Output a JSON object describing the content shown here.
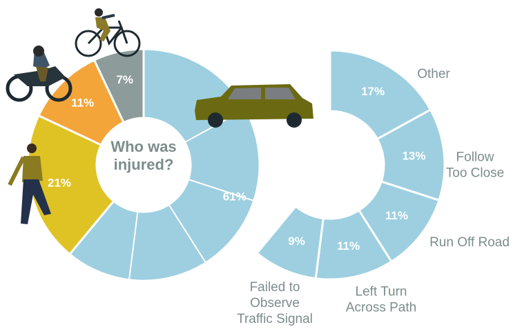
{
  "chart_data": [
    {
      "type": "donut",
      "center_label": "Who was\ninjured?",
      "values": [
        61,
        21,
        11,
        7
      ],
      "value_labels": [
        "61%",
        "21%",
        "11%",
        "7%"
      ],
      "colors": [
        "#9dcfe0",
        "#dfc324",
        "#f4a53a",
        "#8d9c9a"
      ]
    },
    {
      "type": "donut",
      "categories": [
        "Other",
        "Follow\nToo Close",
        "Run Off Road",
        "Left Turn\nAcross Path",
        "Failed to\nObserve\nTraffic Signal"
      ],
      "values": [
        17,
        13,
        11,
        11,
        9
      ],
      "value_labels": [
        "17%",
        "13%",
        "11%",
        "11%",
        "9%"
      ],
      "color": "#9dcfe0"
    }
  ]
}
